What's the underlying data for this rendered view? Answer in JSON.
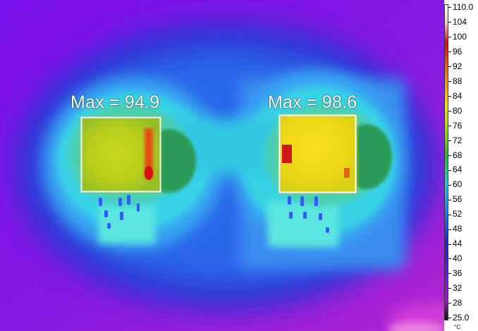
{
  "image": {
    "kind": "thermal-camera-image",
    "palette": "rainbow-high-contrast",
    "annotations": [
      {
        "label": "Max = 94.9",
        "region": "left-chip"
      },
      {
        "label": "Max = 98.6",
        "region": "right-chip"
      }
    ]
  },
  "scale": {
    "unit": "°C",
    "ticks": [
      "110.0",
      "104",
      "100",
      "96",
      "92",
      "88",
      "84",
      "80",
      "76",
      "72",
      "68",
      "64",
      "60",
      "56",
      "52",
      "48",
      "44",
      "40",
      "36",
      "32",
      "28",
      "25.0"
    ],
    "colors": {
      "top": "#ffffff",
      "c104": "#f2c8c8",
      "c100": "#d01010",
      "c92": "#f08020",
      "c84": "#f0e010",
      "c76": "#a8d020",
      "c68": "#30b040",
      "c60": "#20d0d8",
      "c52": "#2080f0",
      "c44": "#2020c8",
      "c36": "#6020d8",
      "c28": "#a020c0",
      "bottom": "#101010"
    }
  }
}
